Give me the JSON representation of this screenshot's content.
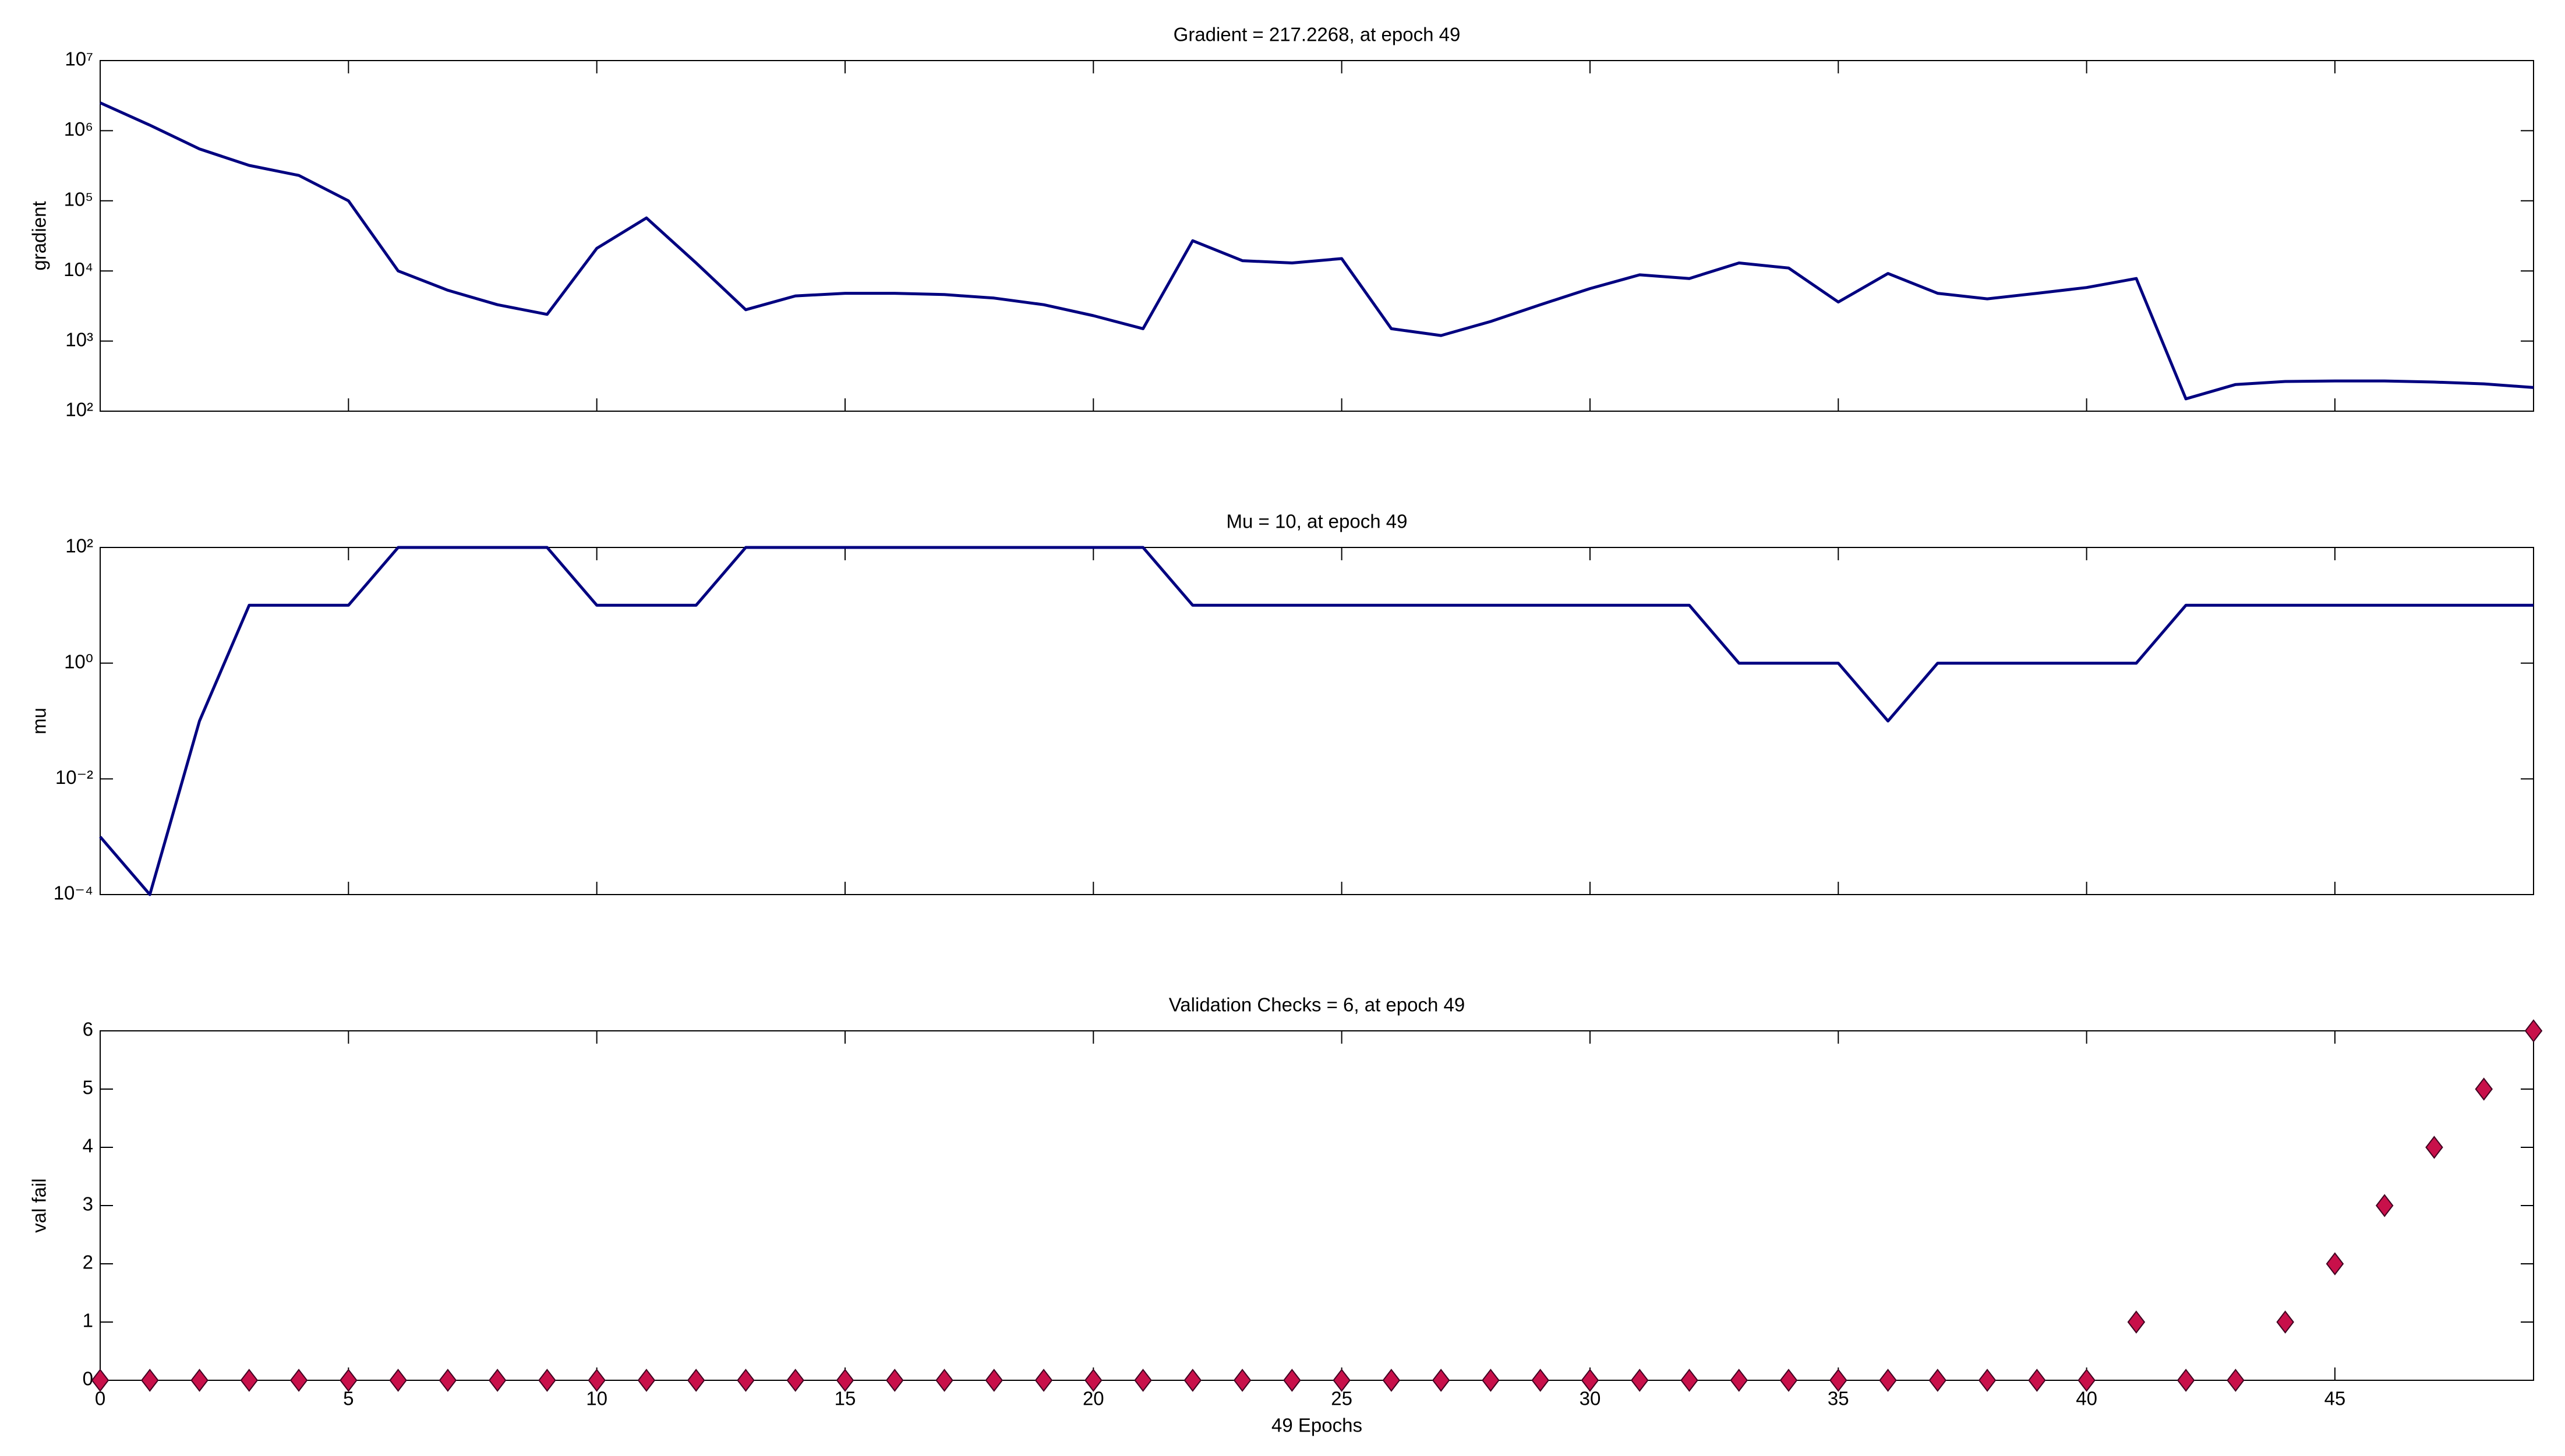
{
  "chart_data": [
    {
      "type": "line",
      "title": "Gradient = 217.2268, at epoch 49",
      "ylabel": "gradient",
      "yscale": "log",
      "color": "#000080",
      "x": [
        0,
        1,
        2,
        3,
        4,
        5,
        6,
        7,
        8,
        9,
        10,
        11,
        12,
        13,
        14,
        15,
        16,
        17,
        18,
        19,
        20,
        21,
        22,
        23,
        24,
        25,
        26,
        27,
        28,
        29,
        30,
        31,
        32,
        33,
        34,
        35,
        36,
        37,
        38,
        39,
        40,
        41,
        42,
        43,
        44,
        45,
        46,
        47,
        48,
        49
      ],
      "values": [
        2500000,
        1200000,
        550000,
        320000,
        230000,
        100000,
        10000,
        5300,
        3300,
        2400,
        21000,
        57000,
        13000,
        2800,
        4400,
        4800,
        4800,
        4600,
        4100,
        3300,
        2300,
        1500,
        27000,
        14000,
        13000,
        15000,
        1500,
        1200,
        1900,
        3300,
        5600,
        8800,
        7800,
        13000,
        11000,
        3600,
        9200,
        4800,
        4000,
        4800,
        5800,
        7800,
        150,
        240,
        265,
        270,
        270,
        260,
        245,
        217.2268
      ],
      "xlim": [
        0,
        49
      ],
      "xticks": [
        0,
        5,
        10,
        15,
        20,
        25,
        30,
        35,
        40,
        45
      ],
      "ylim": [
        100,
        10000000
      ],
      "yticks": [
        {
          "value": 100,
          "label": "10²"
        },
        {
          "value": 1000,
          "label": "10³"
        },
        {
          "value": 10000,
          "label": "10⁴"
        },
        {
          "value": 100000,
          "label": "10⁵"
        },
        {
          "value": 1000000,
          "label": "10⁶"
        },
        {
          "value": 10000000,
          "label": "10⁷"
        }
      ]
    },
    {
      "type": "line",
      "title": "Mu = 10, at epoch 49",
      "ylabel": "mu",
      "yscale": "log",
      "color": "#000080",
      "x": [
        0,
        1,
        2,
        3,
        4,
        5,
        6,
        7,
        8,
        9,
        10,
        11,
        12,
        13,
        14,
        15,
        16,
        17,
        18,
        19,
        20,
        21,
        22,
        23,
        24,
        25,
        26,
        27,
        28,
        29,
        30,
        31,
        32,
        33,
        34,
        35,
        36,
        37,
        38,
        39,
        40,
        41,
        42,
        43,
        44,
        45,
        46,
        47,
        48,
        49
      ],
      "values": [
        0.001,
        0.0001,
        0.1,
        10,
        10,
        10,
        100,
        100,
        100,
        100,
        10,
        10,
        10,
        100,
        100,
        100,
        100,
        100,
        100,
        100,
        100,
        100,
        10,
        10,
        10,
        10,
        10,
        10,
        10,
        10,
        10,
        10,
        10,
        1,
        1,
        1,
        0.1,
        1,
        1,
        1,
        1,
        1,
        10,
        10,
        10,
        10,
        10,
        10,
        10,
        10
      ],
      "xlim": [
        0,
        49
      ],
      "xticks": [
        0,
        5,
        10,
        15,
        20,
        25,
        30,
        35,
        40,
        45
      ],
      "ylim": [
        0.0001,
        100
      ],
      "yticks": [
        {
          "value": 0.0001,
          "label": "10⁻⁴"
        },
        {
          "value": 0.01,
          "label": "10⁻²"
        },
        {
          "value": 1,
          "label": "10⁰"
        },
        {
          "value": 100,
          "label": "10²"
        }
      ]
    },
    {
      "type": "scatter",
      "title": "Validation Checks = 6, at epoch 49",
      "ylabel": "val fail",
      "xlabel": "49 Epochs",
      "color": "#c8104a",
      "x": [
        0,
        1,
        2,
        3,
        4,
        5,
        6,
        7,
        8,
        9,
        10,
        11,
        12,
        13,
        14,
        15,
        16,
        17,
        18,
        19,
        20,
        21,
        22,
        23,
        24,
        25,
        26,
        27,
        28,
        29,
        30,
        31,
        32,
        33,
        34,
        35,
        36,
        37,
        38,
        39,
        40,
        41,
        42,
        43,
        44,
        45,
        46,
        47,
        48,
        49
      ],
      "values": [
        0,
        0,
        0,
        0,
        0,
        0,
        0,
        0,
        0,
        0,
        0,
        0,
        0,
        0,
        0,
        0,
        0,
        0,
        0,
        0,
        0,
        0,
        0,
        0,
        0,
        0,
        0,
        0,
        0,
        0,
        0,
        0,
        0,
        0,
        0,
        0,
        0,
        0,
        0,
        0,
        0,
        1,
        0,
        0,
        1,
        2,
        3,
        4,
        5,
        6
      ],
      "xlim": [
        0,
        49
      ],
      "xticks": [
        0,
        5,
        10,
        15,
        20,
        25,
        30,
        35,
        40,
        45
      ],
      "ylim": [
        0,
        6
      ],
      "yticks": [
        0,
        1,
        2,
        3,
        4,
        5,
        6
      ]
    }
  ]
}
